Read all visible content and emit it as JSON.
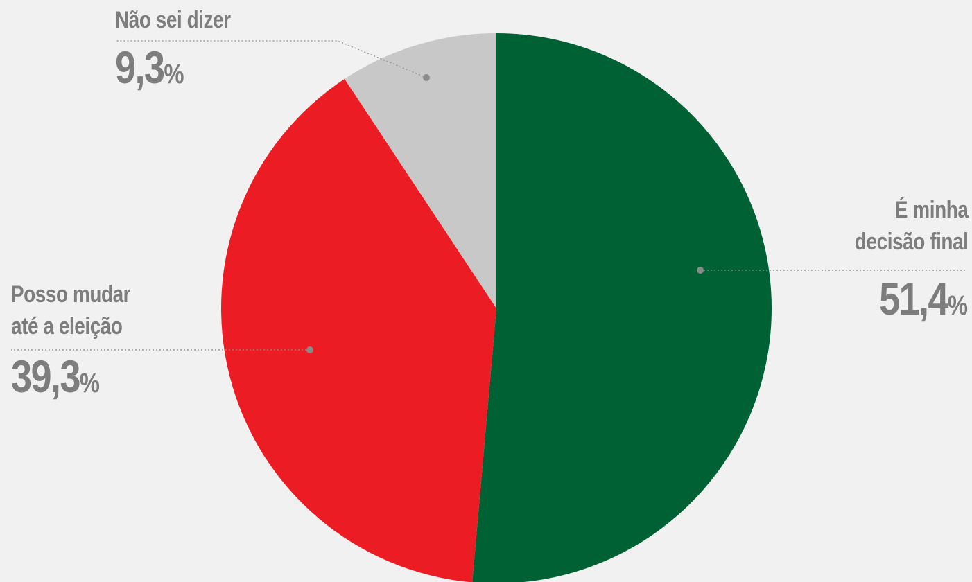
{
  "chart_data": {
    "type": "pie",
    "start": "12 o'clock",
    "direction": "clockwise",
    "slices": [
      {
        "label_lines": [
          "É minha",
          "decisão final"
        ],
        "value": 51.4,
        "value_text": "51,4",
        "color": "#006134"
      },
      {
        "label_lines": [
          "Posso mudar",
          "até a eleição"
        ],
        "value": 39.3,
        "value_text": "39,3",
        "color": "#ec1c24"
      },
      {
        "label_lines": [
          "Não sei dizer"
        ],
        "value": 9.3,
        "value_text": "9,3",
        "color": "#c8c8c8"
      }
    ],
    "unit": "%",
    "label_color": "#7d7d7d",
    "background": "#f1f1f1"
  }
}
